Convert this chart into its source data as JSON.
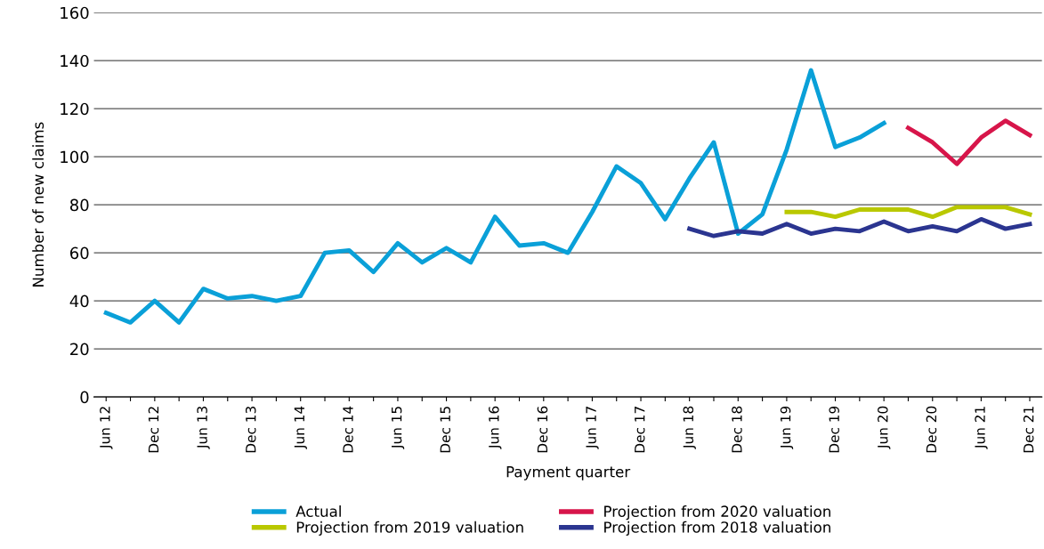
{
  "chart_data": {
    "type": "line",
    "xlabel": "Payment quarter",
    "ylabel": "Number of new claims",
    "categories": [
      "Jun 12",
      null,
      "Dec 12",
      null,
      "Jun 13",
      null,
      "Dec 13",
      null,
      "Jun 14",
      null,
      "Dec 14",
      null,
      "Jun 15",
      null,
      "Dec 15",
      null,
      "Jun 16",
      null,
      "Dec 16",
      null,
      "Jun 17",
      null,
      "Dec 17",
      null,
      "Jun 18",
      null,
      "Dec 18",
      null,
      "Jun 19",
      null,
      "Dec 19",
      null,
      "Jun 20",
      null,
      "Dec 20",
      null,
      "Jun 21",
      null,
      "Dec 21"
    ],
    "series": [
      {
        "name": "Actual",
        "color": "#0aa0d8",
        "values": [
          35,
          31,
          40,
          31,
          45,
          41,
          42,
          40,
          42,
          60,
          61,
          52,
          64,
          56,
          62,
          56,
          75,
          63,
          64,
          60,
          77,
          96,
          89,
          74,
          91,
          106,
          68,
          76,
          103,
          136,
          104,
          108,
          114,
          null,
          null,
          null,
          null,
          null,
          null
        ]
      },
      {
        "name": "Projection from 2019 valuation",
        "color": "#b9c800",
        "values": [
          null,
          null,
          null,
          null,
          null,
          null,
          null,
          null,
          null,
          null,
          null,
          null,
          null,
          null,
          null,
          null,
          null,
          null,
          null,
          null,
          null,
          null,
          null,
          null,
          null,
          null,
          null,
          null,
          77,
          77,
          75,
          78,
          78,
          78,
          75,
          79,
          79,
          79,
          76
        ]
      },
      {
        "name": "Projection from 2020 valuation",
        "color": "#d7154a",
        "values": [
          null,
          null,
          null,
          null,
          null,
          null,
          null,
          null,
          null,
          null,
          null,
          null,
          null,
          null,
          null,
          null,
          null,
          null,
          null,
          null,
          null,
          null,
          null,
          null,
          null,
          null,
          null,
          null,
          null,
          null,
          null,
          null,
          null,
          112,
          106,
          97,
          108,
          115,
          109
        ]
      },
      {
        "name": "Projection from 2018 valuation",
        "color": "#2b3590",
        "values": [
          null,
          null,
          null,
          null,
          null,
          null,
          null,
          null,
          null,
          null,
          null,
          null,
          null,
          null,
          null,
          null,
          null,
          null,
          null,
          null,
          null,
          null,
          null,
          null,
          70,
          67,
          69,
          68,
          72,
          68,
          70,
          69,
          73,
          69,
          71,
          69,
          74,
          70,
          72
        ]
      }
    ],
    "ylim": [
      0,
      160
    ],
    "yticks": [
      0,
      20,
      40,
      60,
      80,
      100,
      120,
      140,
      160
    ],
    "grid": "y",
    "legend": "bottom",
    "marker": "none",
    "line_style": "solid"
  }
}
